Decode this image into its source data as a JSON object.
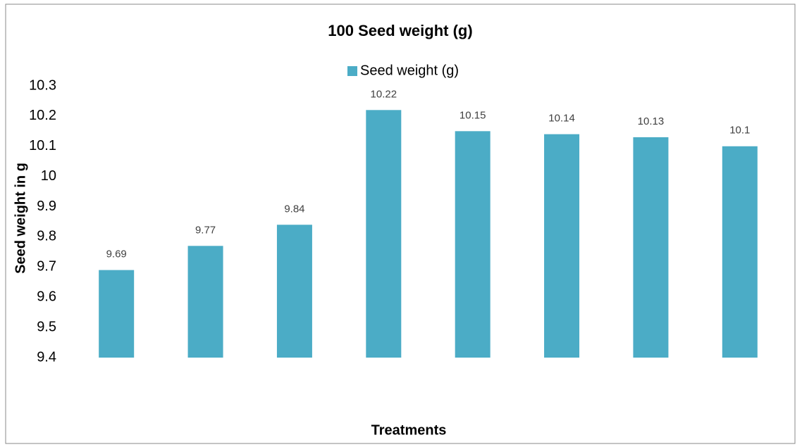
{
  "chart_data": {
    "type": "bar",
    "title": "100 Seed weight (g)",
    "x_label": "Treatments",
    "y_label": "Seed weight in g",
    "categories": [
      null,
      null,
      null,
      null,
      null,
      null,
      null,
      null
    ],
    "series": [
      {
        "name": "Seed weight (g)",
        "color": "#4bacc6",
        "values": [
          9.69,
          9.77,
          9.84,
          10.22,
          10.15,
          10.14,
          10.13,
          10.1
        ]
      }
    ],
    "ylim": [
      9.4,
      10.3
    ],
    "yticks": [
      9.4,
      9.5,
      9.6,
      9.7,
      9.8,
      9.9,
      10,
      10.1,
      10.2,
      10.3
    ],
    "grid": false,
    "legend": "top"
  }
}
